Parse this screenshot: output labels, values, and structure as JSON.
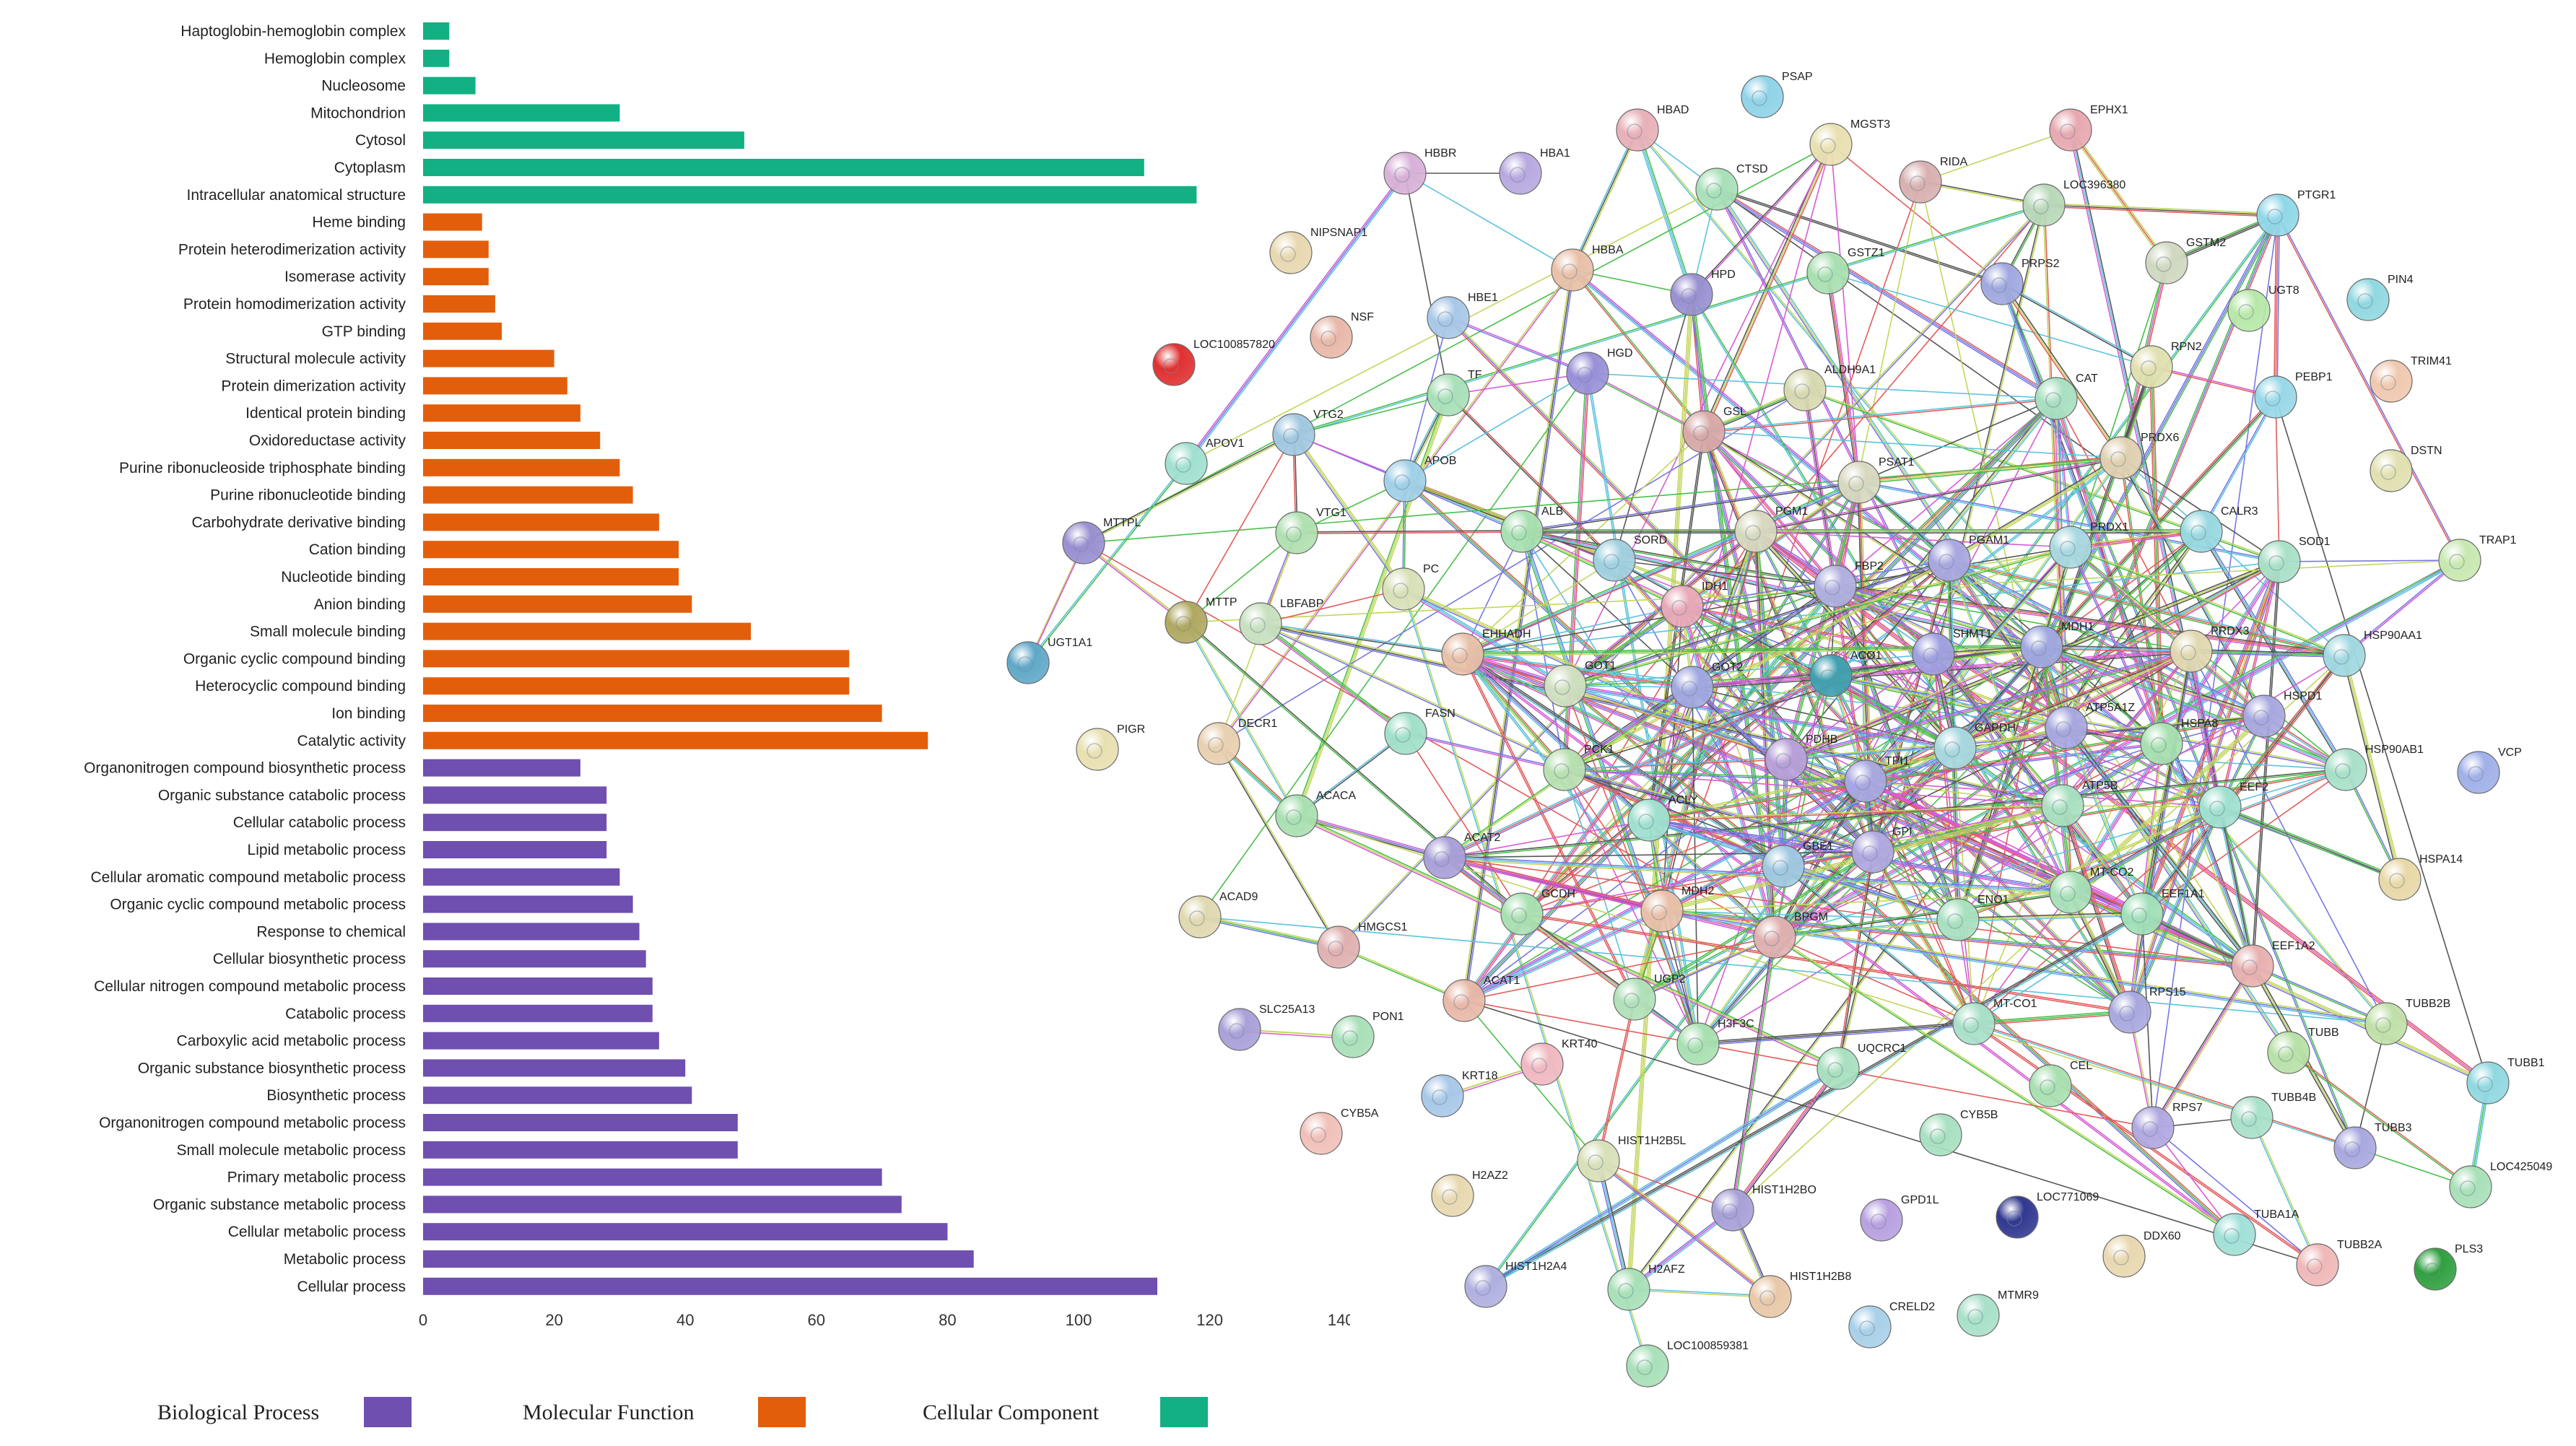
{
  "colors": {
    "biological_process": "#6f4fb0",
    "molecular_function": "#e35e0a",
    "cellular_component": "#12b083"
  },
  "legend": [
    {
      "label": "Biological Process",
      "color": "#6f4fb0"
    },
    {
      "label": "Molecular Function",
      "color": "#e35e0a"
    },
    {
      "label": "Cellular Component",
      "color": "#12b083"
    }
  ],
  "chart_data": [
    {
      "type": "bar",
      "orientation": "horizontal",
      "xlim": [
        0,
        140
      ],
      "xticks": [
        "0",
        "20",
        "40",
        "60",
        "80",
        "100",
        "120",
        "140"
      ],
      "grid": false,
      "legend_position": "bottom",
      "categories": [
        {
          "label": "Haptoglobin-hemoglobin complex",
          "value": 4,
          "group": "cellular_component"
        },
        {
          "label": "Hemoglobin complex",
          "value": 4,
          "group": "cellular_component"
        },
        {
          "label": "Nucleosome",
          "value": 8,
          "group": "cellular_component"
        },
        {
          "label": "Mitochondrion",
          "value": 30,
          "group": "cellular_component"
        },
        {
          "label": "Cytosol",
          "value": 49,
          "group": "cellular_component"
        },
        {
          "label": "Cytoplasm",
          "value": 110,
          "group": "cellular_component"
        },
        {
          "label": "Intracellular anatomical structure",
          "value": 118,
          "group": "cellular_component"
        },
        {
          "label": "Heme binding",
          "value": 9,
          "group": "molecular_function"
        },
        {
          "label": "Protein heterodimerization activity",
          "value": 10,
          "group": "molecular_function"
        },
        {
          "label": "Isomerase activity",
          "value": 10,
          "group": "molecular_function"
        },
        {
          "label": "Protein homodimerization activity",
          "value": 11,
          "group": "molecular_function"
        },
        {
          "label": "GTP binding",
          "value": 12,
          "group": "molecular_function"
        },
        {
          "label": "Structural molecule activity",
          "value": 20,
          "group": "molecular_function"
        },
        {
          "label": "Protein dimerization activity",
          "value": 22,
          "group": "molecular_function"
        },
        {
          "label": "Identical protein binding",
          "value": 24,
          "group": "molecular_function"
        },
        {
          "label": "Oxidoreductase activity",
          "value": 27,
          "group": "molecular_function"
        },
        {
          "label": "Purine ribonucleoside triphosphate binding",
          "value": 30,
          "group": "molecular_function"
        },
        {
          "label": "Purine ribonucleotide binding",
          "value": 32,
          "group": "molecular_function"
        },
        {
          "label": "Carbohydrate derivative binding",
          "value": 36,
          "group": "molecular_function"
        },
        {
          "label": "Cation binding",
          "value": 39,
          "group": "molecular_function"
        },
        {
          "label": "Nucleotide binding",
          "value": 39,
          "group": "molecular_function"
        },
        {
          "label": "Anion binding",
          "value": 41,
          "group": "molecular_function"
        },
        {
          "label": "Small molecule binding",
          "value": 50,
          "group": "molecular_function"
        },
        {
          "label": "Organic cyclic compound binding",
          "value": 65,
          "group": "molecular_function"
        },
        {
          "label": "Heterocyclic compound binding",
          "value": 65,
          "group": "molecular_function"
        },
        {
          "label": "Ion binding",
          "value": 70,
          "group": "molecular_function"
        },
        {
          "label": "Catalytic activity",
          "value": 77,
          "group": "molecular_function"
        },
        {
          "label": "Organonitrogen compound biosynthetic process",
          "value": 24,
          "group": "biological_process"
        },
        {
          "label": "Organic substance catabolic process",
          "value": 28,
          "group": "biological_process"
        },
        {
          "label": "Cellular catabolic process",
          "value": 28,
          "group": "biological_process"
        },
        {
          "label": "Lipid metabolic process",
          "value": 28,
          "group": "biological_process"
        },
        {
          "label": "Cellular aromatic compound metabolic process",
          "value": 30,
          "group": "biological_process"
        },
        {
          "label": "Organic cyclic compound metabolic process",
          "value": 32,
          "group": "biological_process"
        },
        {
          "label": "Response to chemical",
          "value": 33,
          "group": "biological_process"
        },
        {
          "label": "Cellular biosynthetic process",
          "value": 34,
          "group": "biological_process"
        },
        {
          "label": "Cellular nitrogen compound metabolic process",
          "value": 35,
          "group": "biological_process"
        },
        {
          "label": "Catabolic process",
          "value": 35,
          "group": "biological_process"
        },
        {
          "label": "Carboxylic acid metabolic process",
          "value": 36,
          "group": "biological_process"
        },
        {
          "label": "Organic substance biosynthetic process",
          "value": 40,
          "group": "biological_process"
        },
        {
          "label": "Biosynthetic process",
          "value": 41,
          "group": "biological_process"
        },
        {
          "label": "Organonitrogen compound metabolic process",
          "value": 48,
          "group": "biological_process"
        },
        {
          "label": "Small molecule metabolic process",
          "value": 48,
          "group": "biological_process"
        },
        {
          "label": "Primary metabolic process",
          "value": 70,
          "group": "biological_process"
        },
        {
          "label": "Organic substance metabolic process",
          "value": 73,
          "group": "biological_process"
        },
        {
          "label": "Cellular metabolic process",
          "value": 80,
          "group": "biological_process"
        },
        {
          "label": "Metabolic process",
          "value": 84,
          "group": "biological_process"
        },
        {
          "label": "Cellular process",
          "value": 112,
          "group": "biological_process"
        }
      ]
    },
    {
      "type": "network",
      "nodes": [
        {
          "id": "PSAP",
          "color": "#8fd3e8"
        },
        {
          "id": "HBAD",
          "color": "#e8b0b8"
        },
        {
          "id": "HBBR",
          "color": "#d8b0d8"
        },
        {
          "id": "HBA1",
          "color": "#b8a8e0"
        },
        {
          "id": "CTSD",
          "color": "#a8e0b8"
        },
        {
          "id": "MGST3",
          "color": "#e8e0b0"
        },
        {
          "id": "RIDA",
          "color": "#d8b0b0"
        },
        {
          "id": "EPHX1",
          "color": "#e8a8b0"
        },
        {
          "id": "LOC396380",
          "color": "#b8d8b8"
        },
        {
          "id": "PTGR1",
          "color": "#90d8e8"
        },
        {
          "id": "NIPSNAP1",
          "color": "#e8d8b0"
        },
        {
          "id": "HBBA",
          "color": "#e8c0a8"
        },
        {
          "id": "HPD",
          "color": "#9890d0"
        },
        {
          "id": "GSTZ1",
          "color": "#a8e0b0"
        },
        {
          "id": "PRPS2",
          "color": "#a0a8e0"
        },
        {
          "id": "GSTM2",
          "color": "#d0d8c0"
        },
        {
          "id": "UGT8",
          "color": "#b8e8a8"
        },
        {
          "id": "PIN4",
          "color": "#90d8e0"
        },
        {
          "id": "NSF",
          "color": "#e8b8a8"
        },
        {
          "id": "HBE1",
          "color": "#a8c8e8"
        },
        {
          "id": "LOC100857820",
          "color": "#e03030"
        },
        {
          "id": "TF",
          "color": "#a8e0b8"
        },
        {
          "id": "HGD",
          "color": "#9890d8"
        },
        {
          "id": "ALDH9A1",
          "color": "#d8d8b0"
        },
        {
          "id": "RPN2",
          "color": "#e0e0b0"
        },
        {
          "id": "TRIM41",
          "color": "#f0c8b0"
        },
        {
          "id": "CAT",
          "color": "#a8e0c0"
        },
        {
          "id": "PEBP1",
          "color": "#98d8e8"
        },
        {
          "id": "VTG2",
          "color": "#a0c8e0"
        },
        {
          "id": "APOV1",
          "color": "#a0e0d0"
        },
        {
          "id": "APOB",
          "color": "#a0d0e8"
        },
        {
          "id": "GSL",
          "color": "#d8a8a8"
        },
        {
          "id": "PSAT1",
          "color": "#d8d8c0"
        },
        {
          "id": "PRDX6",
          "color": "#e0d0b0"
        },
        {
          "id": "DSTN",
          "color": "#e0e0b0"
        },
        {
          "id": "MTTPL",
          "color": "#9890d0"
        },
        {
          "id": "VTG1",
          "color": "#b0e0b0"
        },
        {
          "id": "ALB",
          "color": "#a8e0b0"
        },
        {
          "id": "PGM1",
          "color": "#d8d8c0"
        },
        {
          "id": "SORD",
          "color": "#a0d0e0"
        },
        {
          "id": "CALR3",
          "color": "#98d8e0"
        },
        {
          "id": "SOD1",
          "color": "#a8e0c8"
        },
        {
          "id": "TRAP1",
          "color": "#c8e8b0"
        },
        {
          "id": "PC",
          "color": "#d8e0b8"
        },
        {
          "id": "IDH1",
          "color": "#e8a8b8"
        },
        {
          "id": "FBP2",
          "color": "#b0b0e0"
        },
        {
          "id": "PGAM1",
          "color": "#a8a8e0"
        },
        {
          "id": "PRDX1",
          "color": "#a8d8e0"
        },
        {
          "id": "MTTP",
          "color": "#b0a860"
        },
        {
          "id": "LBFABP",
          "color": "#c8e0c0"
        },
        {
          "id": "EHHADH",
          "color": "#e8c0a8"
        },
        {
          "id": "UGT1A1",
          "color": "#60a8c8"
        },
        {
          "id": "GOT1",
          "color": "#d0e0c0"
        },
        {
          "id": "GOT2",
          "color": "#a0a8e0"
        },
        {
          "id": "ACO1",
          "color": "#40a0b0"
        },
        {
          "id": "SHMT1",
          "color": "#a0a0e0"
        },
        {
          "id": "MDH1",
          "color": "#a0a8e0"
        },
        {
          "id": "PRDX3",
          "color": "#e0d8b0"
        },
        {
          "id": "HSP90AA1",
          "color": "#a0d8e0"
        },
        {
          "id": "PIGR",
          "color": "#e8e0b0"
        },
        {
          "id": "DECR1",
          "color": "#e8d0b0"
        },
        {
          "id": "FASN",
          "color": "#a0e0c8"
        },
        {
          "id": "PDHB",
          "color": "#b8a0d8"
        },
        {
          "id": "TPI1",
          "color": "#a8a8e0"
        },
        {
          "id": "GAPDH",
          "color": "#a8d8e0"
        },
        {
          "id": "ATP5A1Z",
          "color": "#a8a8e0"
        },
        {
          "id": "HSPA8",
          "color": "#a8e0b0"
        },
        {
          "id": "HSPD1",
          "color": "#a8a8e0"
        },
        {
          "id": "HSP90AB1",
          "color": "#a8e0c8"
        },
        {
          "id": "VCP",
          "color": "#a0b0e8"
        },
        {
          "id": "PCK1",
          "color": "#b8e0b0"
        },
        {
          "id": "ACACA",
          "color": "#a8e0b0"
        },
        {
          "id": "ACLY",
          "color": "#a0e0d0"
        },
        {
          "id": "ATP5B",
          "color": "#a8e0c0"
        },
        {
          "id": "EEF2",
          "color": "#a0e0d0"
        },
        {
          "id": "ACAT2",
          "color": "#a8a0d8"
        },
        {
          "id": "GBE1",
          "color": "#a0c8e0"
        },
        {
          "id": "GPI",
          "color": "#b0a8e0"
        },
        {
          "id": "HSPA14",
          "color": "#e8d8a8"
        },
        {
          "id": "ACAD9",
          "color": "#e0d8b0"
        },
        {
          "id": "GCDH",
          "color": "#a8e0b0"
        },
        {
          "id": "MDH2",
          "color": "#e8c0a8"
        },
        {
          "id": "MT-CO2",
          "color": "#a8e0b8"
        },
        {
          "id": "EEF1A1",
          "color": "#a0e0b8"
        },
        {
          "id": "HMGCS1",
          "color": "#e0b0b0"
        },
        {
          "id": "BPGM",
          "color": "#e0b0b0"
        },
        {
          "id": "ENO1",
          "color": "#a8e0c0"
        },
        {
          "id": "EEF1A2",
          "color": "#e8b0b0"
        },
        {
          "id": "ACAT1",
          "color": "#e8b8a8"
        },
        {
          "id": "UGP2",
          "color": "#b0e0b8"
        },
        {
          "id": "RPS15",
          "color": "#a8a8e0"
        },
        {
          "id": "TUBB2B",
          "color": "#c0e0a8"
        },
        {
          "id": "SLC25A13",
          "color": "#a8a0d8"
        },
        {
          "id": "PON1",
          "color": "#a8e0b8"
        },
        {
          "id": "H3F3C",
          "color": "#a8e0b0"
        },
        {
          "id": "UQCRC1",
          "color": "#a8e0c0"
        },
        {
          "id": "MT-CO1",
          "color": "#a8e0c8"
        },
        {
          "id": "TUBB",
          "color": "#b8e0a8"
        },
        {
          "id": "TUBB1",
          "color": "#90d8e0"
        },
        {
          "id": "KRT18",
          "color": "#a8c8e8"
        },
        {
          "id": "KRT40",
          "color": "#f0b8c0"
        },
        {
          "id": "CEL",
          "color": "#a8e0b0"
        },
        {
          "id": "RPS7",
          "color": "#b0a8e0"
        },
        {
          "id": "TUBB4B",
          "color": "#a8e0c8"
        },
        {
          "id": "CYB5A",
          "color": "#f0c0b8"
        },
        {
          "id": "CYB5B",
          "color": "#a8e0c0"
        },
        {
          "id": "TUBB3",
          "color": "#a8a8e0"
        },
        {
          "id": "LOC425049",
          "color": "#a8e0b8"
        },
        {
          "id": "H2AZ2",
          "color": "#e8d8b0"
        },
        {
          "id": "HIST1H2B5L",
          "color": "#d8e0b8"
        },
        {
          "id": "HIST1H2BO",
          "color": "#a8a0d8"
        },
        {
          "id": "GPD1L",
          "color": "#b8a0e0"
        },
        {
          "id": "LOC771069",
          "color": "#303890"
        },
        {
          "id": "DDX60",
          "color": "#e8d8b0"
        },
        {
          "id": "TUBA1A",
          "color": "#a0e0d8"
        },
        {
          "id": "TUBB2A",
          "color": "#f0b8b8"
        },
        {
          "id": "PLS3",
          "color": "#30a040"
        },
        {
          "id": "HIST1H2A4",
          "color": "#b0b0e0"
        },
        {
          "id": "H2AFZ",
          "color": "#a8e0b8"
        },
        {
          "id": "HIST1H2B8",
          "color": "#e8c8a8"
        },
        {
          "id": "CRELD2",
          "color": "#a8d0e8"
        },
        {
          "id": "MTMR9",
          "color": "#a8e0c8"
        },
        {
          "id": "LOC100859381",
          "color": "#a8e0b8"
        }
      ]
    }
  ]
}
